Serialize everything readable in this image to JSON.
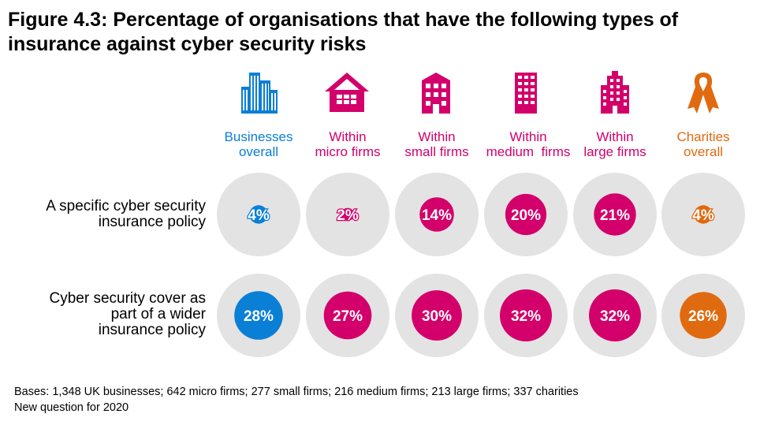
{
  "title": "Figure 4.3: Percentage of organisations that have the following types of insurance against cyber security risks",
  "colors": {
    "blue": "#0a7fd6",
    "pink": "#d3006b",
    "orange": "#e06a10",
    "grey": "#e3e3e3"
  },
  "columns": [
    {
      "line1": "Businesses",
      "line2": "overall",
      "icon": "office-buildings-icon",
      "color": "#0a7fd6"
    },
    {
      "line1": "Within",
      "line2": "micro firms",
      "icon": "house-icon",
      "color": "#d3006b"
    },
    {
      "line1": "Within",
      "line2": "small firms",
      "icon": "small-building-icon",
      "color": "#d3006b"
    },
    {
      "line1": "Within",
      "line2": "medium  firms",
      "icon": "medium-building-icon",
      "color": "#d3006b"
    },
    {
      "line1": "Within",
      "line2": "large firms",
      "icon": "large-building-icon",
      "color": "#d3006b"
    },
    {
      "line1": "Charities",
      "line2": "overall",
      "icon": "ribbon-icon",
      "color": "#e06a10"
    }
  ],
  "rows": [
    {
      "line1": "A specific cyber security",
      "line2": "insurance policy",
      "line3": ""
    },
    {
      "line1": "Cyber security cover as",
      "line2": "part of a wider",
      "line3": "insurance policy"
    }
  ],
  "chart_data": {
    "type": "table",
    "categories": [
      "Businesses overall",
      "Within micro firms",
      "Within small firms",
      "Within medium firms",
      "Within large firms",
      "Charities overall"
    ],
    "series": [
      {
        "name": "A specific cyber security insurance policy",
        "values": [
          4,
          2,
          14,
          20,
          21,
          4
        ],
        "labels": [
          "4%",
          "2%",
          "14%",
          "20%",
          "21%",
          "4%"
        ]
      },
      {
        "name": "Cyber security cover as part of a wider insurance policy",
        "values": [
          28,
          27,
          30,
          32,
          32,
          26
        ],
        "labels": [
          "28%",
          "27%",
          "30%",
          "32%",
          "32%",
          "26%"
        ]
      }
    ],
    "max_value": 100
  },
  "footer": {
    "bases": "Bases: 1,348 UK businesses; 642 micro firms; 277 small firms; 216 medium firms; 213 large firms; 337 charities",
    "note": "New question for 2020"
  }
}
